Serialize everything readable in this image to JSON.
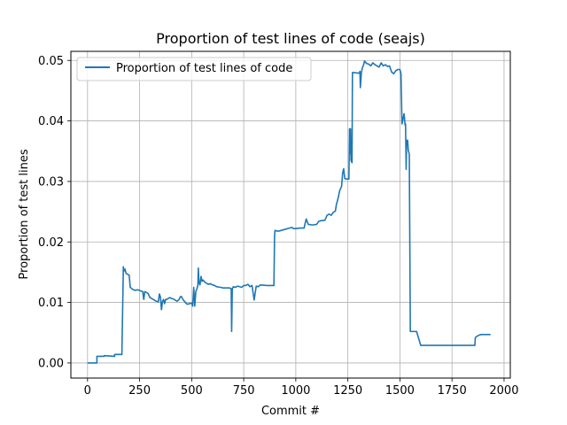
{
  "chart_data": {
    "type": "line",
    "title": "Proportion of test lines of code (seajs)",
    "xlabel": "Commit #",
    "ylabel": "Proportion of test lines",
    "xlim": [
      -80,
      2030
    ],
    "ylim": [
      -0.0025,
      0.0515
    ],
    "xticks": [
      0,
      250,
      500,
      750,
      1000,
      1250,
      1500,
      1750,
      2000
    ],
    "xtick_labels": [
      "0",
      "250",
      "500",
      "750",
      "1000",
      "1250",
      "1500",
      "1750",
      "2000"
    ],
    "yticks": [
      0.0,
      0.01,
      0.02,
      0.03,
      0.04,
      0.05
    ],
    "ytick_labels": [
      "0.00",
      "0.01",
      "0.02",
      "0.03",
      "0.04",
      "0.05"
    ],
    "grid": true,
    "legend": {
      "position": "top-left",
      "entries": [
        "Proportion of test lines of code"
      ]
    },
    "colors": {
      "line": "#1f77b4",
      "grid": "#b0b0b0",
      "axis": "#000000"
    },
    "series": [
      {
        "name": "Proportion of test lines of code",
        "x": [
          0,
          45,
          45,
          80,
          80,
          130,
          130,
          140,
          140,
          165,
          172,
          175,
          180,
          185,
          190,
          200,
          205,
          215,
          220,
          230,
          240,
          250,
          255,
          265,
          270,
          275,
          290,
          300,
          310,
          320,
          330,
          340,
          345,
          350,
          355,
          360,
          365,
          370,
          375,
          380,
          395,
          400,
          410,
          420,
          430,
          440,
          445,
          450,
          460,
          470,
          475,
          480,
          490,
          500,
          505,
          510,
          515,
          520,
          525,
          525,
          530,
          532,
          535,
          540,
          545,
          550,
          555,
          560,
          565,
          570,
          580,
          590,
          600,
          610,
          620,
          640,
          650,
          660,
          670,
          680,
          690,
          692,
          695,
          700,
          710,
          720,
          740,
          750,
          760,
          770,
          780,
          790,
          800,
          810,
          820,
          830,
          860,
          880,
          895,
          898,
          900,
          910,
          920,
          940,
          960,
          980,
          990,
          1000,
          1020,
          1040,
          1045,
          1050,
          1060,
          1080,
          1100,
          1110,
          1120,
          1140,
          1150,
          1160,
          1170,
          1180,
          1190,
          1195,
          1200,
          1205,
          1210,
          1215,
          1220,
          1225,
          1230,
          1235,
          1240,
          1255,
          1258,
          1262,
          1263,
          1265,
          1270,
          1272,
          1275,
          1300,
          1305,
          1308,
          1310,
          1315,
          1320,
          1325,
          1330,
          1340,
          1350,
          1360,
          1370,
          1380,
          1390,
          1400,
          1410,
          1420,
          1430,
          1440,
          1450,
          1460,
          1470,
          1480,
          1490,
          1500,
          1505,
          1510,
          1520,
          1525,
          1527,
          1530,
          1532,
          1535,
          1537,
          1540,
          1545,
          1550,
          1560,
          1565,
          1570,
          1580,
          1600,
          1620,
          1622,
          1700,
          1760,
          1780,
          1860,
          1862,
          1870,
          1880,
          1890,
          1900,
          1920,
          1935
        ],
        "y": [
          0.0,
          0.0,
          0.0011,
          0.0011,
          0.0012,
          0.0011,
          0.0014,
          0.0014,
          0.0014,
          0.0014,
          0.0159,
          0.0152,
          0.0155,
          0.0148,
          0.0147,
          0.0145,
          0.0125,
          0.0122,
          0.0121,
          0.012,
          0.0121,
          0.012,
          0.0119,
          0.0118,
          0.0105,
          0.0118,
          0.0115,
          0.0108,
          0.0106,
          0.0104,
          0.0102,
          0.0101,
          0.0114,
          0.0109,
          0.0088,
          0.0102,
          0.0105,
          0.0098,
          0.0105,
          0.0105,
          0.0108,
          0.0107,
          0.0106,
          0.0104,
          0.0102,
          0.0105,
          0.0109,
          0.011,
          0.0104,
          0.01,
          0.0098,
          0.0097,
          0.0098,
          0.0099,
          0.0094,
          0.0125,
          0.0094,
          0.0118,
          0.0122,
          0.0122,
          0.0129,
          0.0157,
          0.0133,
          0.0129,
          0.0143,
          0.0135,
          0.0137,
          0.0135,
          0.0133,
          0.0132,
          0.013,
          0.0131,
          0.0129,
          0.0128,
          0.0126,
          0.0125,
          0.0124,
          0.0124,
          0.0124,
          0.0124,
          0.0123,
          0.0052,
          0.0122,
          0.0126,
          0.0125,
          0.0127,
          0.0125,
          0.0128,
          0.0128,
          0.013,
          0.0126,
          0.0128,
          0.0104,
          0.0127,
          0.0126,
          0.0129,
          0.0128,
          0.0128,
          0.0128,
          0.021,
          0.0219,
          0.0218,
          0.0218,
          0.022,
          0.0222,
          0.0224,
          0.0222,
          0.0222,
          0.0223,
          0.0223,
          0.0231,
          0.0238,
          0.0229,
          0.0228,
          0.0229,
          0.0234,
          0.0235,
          0.0236,
          0.0244,
          0.0246,
          0.0244,
          0.0249,
          0.0251,
          0.0262,
          0.0268,
          0.0275,
          0.0284,
          0.0288,
          0.0292,
          0.0314,
          0.0321,
          0.0305,
          0.0304,
          0.0304,
          0.0387,
          0.0346,
          0.0387,
          0.0335,
          0.0331,
          0.048,
          0.048,
          0.0479,
          0.0479,
          0.0482,
          0.0455,
          0.048,
          0.0488,
          0.0492,
          0.0499,
          0.0495,
          0.0494,
          0.0491,
          0.0496,
          0.0493,
          0.0491,
          0.0489,
          0.0496,
          0.0491,
          0.0493,
          0.049,
          0.0491,
          0.0481,
          0.0478,
          0.0483,
          0.0485,
          0.0485,
          0.0478,
          0.0395,
          0.0412,
          0.0393,
          0.0395,
          0.032,
          0.0368,
          0.0368,
          0.0368,
          0.0352,
          0.0345,
          0.0052,
          0.0052,
          0.0052,
          0.0052,
          0.0052,
          0.0029,
          0.0029,
          0.0029,
          0.0029,
          0.0029,
          0.0029,
          0.0029,
          0.0042,
          0.0044,
          0.0046,
          0.0047,
          0.0047,
          0.0047,
          0.0047
        ]
      }
    ]
  }
}
